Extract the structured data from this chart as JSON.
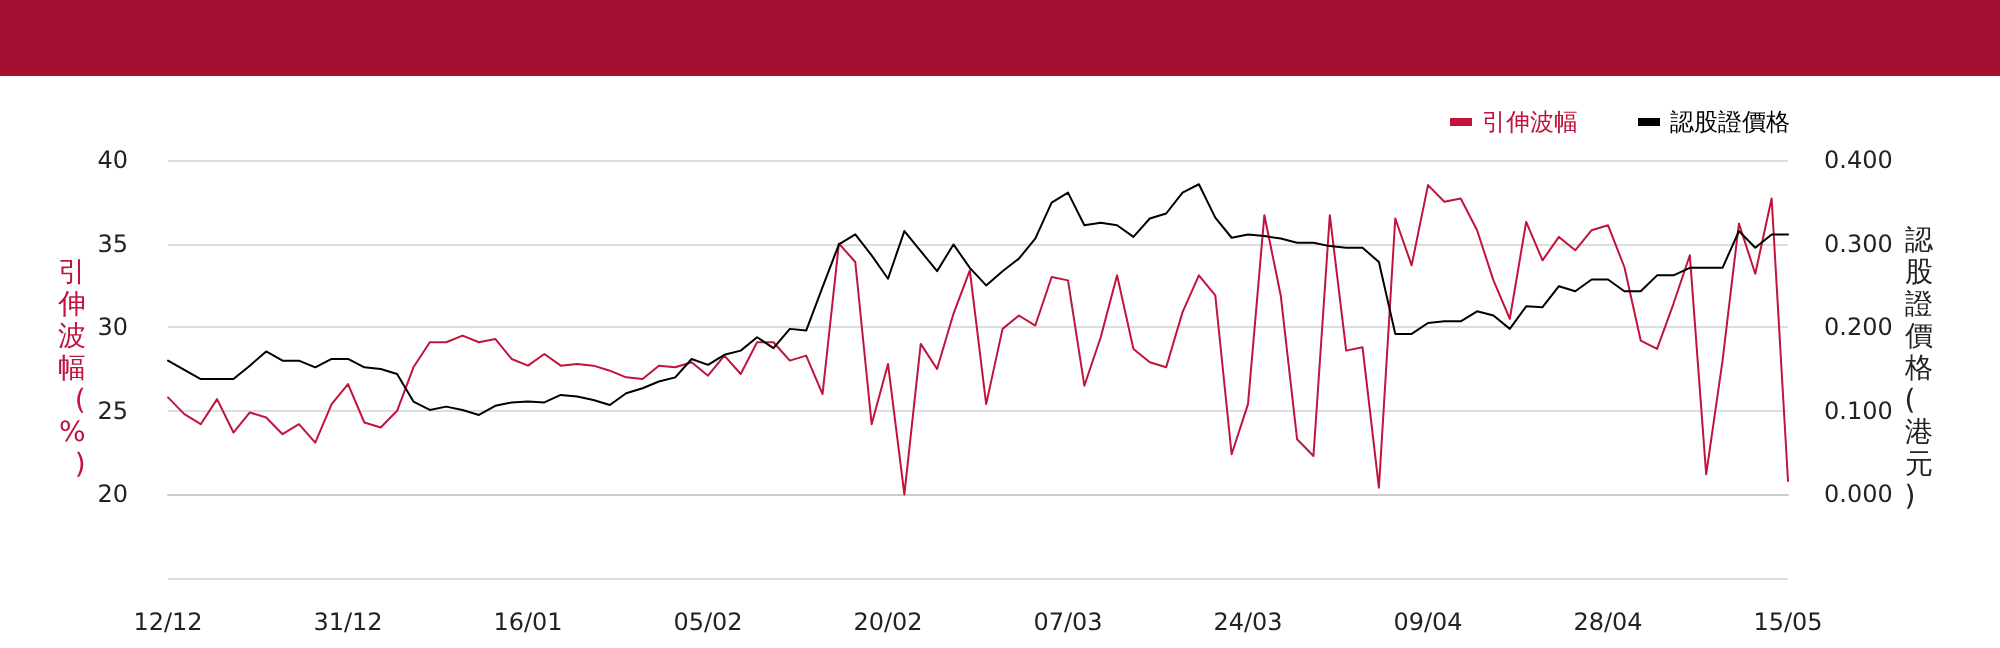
{
  "chart_data": {
    "type": "line",
    "categories": [
      "12/12",
      null,
      null,
      null,
      null,
      null,
      null,
      null,
      null,
      null,
      null,
      "31/12",
      null,
      null,
      null,
      null,
      null,
      null,
      null,
      null,
      null,
      null,
      "16/01",
      null,
      null,
      null,
      null,
      null,
      null,
      null,
      null,
      null,
      null,
      "05/02",
      null,
      null,
      null,
      null,
      null,
      null,
      null,
      null,
      null,
      null,
      "20/02",
      null,
      null,
      null,
      null,
      null,
      null,
      null,
      null,
      null,
      null,
      "07/03",
      null,
      null,
      null,
      null,
      null,
      null,
      null,
      null,
      null,
      null,
      "24/03",
      null,
      null,
      null,
      null,
      null,
      null,
      null,
      null,
      null,
      null,
      "09/04",
      null,
      null,
      null,
      null,
      null,
      null,
      null,
      null,
      null,
      null,
      "28/04",
      null,
      null,
      null,
      null,
      null,
      null,
      null,
      null,
      null,
      null,
      "15/05"
    ],
    "series": [
      {
        "name": "引伸波幅",
        "color": "#c0143c",
        "values": [
          25.8,
          24.8,
          24.2,
          25.7,
          23.7,
          24.9,
          24.6,
          23.6,
          24.2,
          23.1,
          25.4,
          26.6,
          24.3,
          24.0,
          25.0,
          27.6,
          29.1,
          29.1,
          29.5,
          29.1,
          29.3,
          28.1,
          27.7,
          28.4,
          27.7,
          27.8,
          27.7,
          27.4,
          27.0,
          26.9,
          27.7,
          27.6,
          27.9,
          27.1,
          28.3,
          27.2,
          29.1,
          29.1,
          28.0,
          28.3,
          26.0,
          35.0,
          33.9,
          24.2,
          27.8,
          20.0,
          29.0,
          27.5,
          30.8,
          33.4,
          25.4,
          29.9,
          30.7,
          30.1,
          33.0,
          32.8,
          26.5,
          29.4,
          33.1,
          28.7,
          27.9,
          27.6,
          30.9,
          33.1,
          31.9,
          22.4,
          25.4,
          36.7,
          31.9,
          23.3,
          22.3,
          36.7,
          28.6,
          28.8,
          20.4,
          36.5,
          33.7,
          38.5,
          37.5,
          37.7,
          35.8,
          32.8,
          30.5,
          36.3,
          34.0,
          35.4,
          34.6,
          35.8,
          36.1,
          33.6,
          29.2,
          28.7,
          31.4,
          34.3,
          21.2,
          28.0,
          36.2,
          33.2,
          37.7,
          20.8
        ]
      },
      {
        "name": "認股證價格",
        "color": "#000000",
        "axis": "y2",
        "values": [
          0.16,
          0.149,
          0.138,
          0.138,
          0.138,
          0.154,
          0.171,
          0.16,
          0.16,
          0.152,
          0.162,
          0.162,
          0.152,
          0.15,
          0.144,
          0.111,
          0.101,
          0.105,
          0.101,
          0.095,
          0.106,
          0.11,
          0.111,
          0.11,
          0.119,
          0.117,
          0.113,
          0.107,
          0.121,
          0.127,
          0.135,
          0.14,
          0.162,
          0.155,
          0.167,
          0.172,
          0.188,
          0.175,
          0.198,
          0.196,
          0.248,
          0.299,
          0.311,
          0.286,
          0.258,
          0.315,
          0.291,
          0.267,
          0.299,
          0.271,
          0.25,
          0.267,
          0.282,
          0.306,
          0.349,
          0.361,
          0.322,
          0.325,
          0.322,
          0.308,
          0.33,
          0.336,
          0.361,
          0.371,
          0.331,
          0.307,
          0.311,
          0.309,
          0.306,
          0.301,
          0.301,
          0.297,
          0.295,
          0.295,
          0.278,
          0.192,
          0.192,
          0.205,
          0.207,
          0.207,
          0.219,
          0.214,
          0.198,
          0.225,
          0.224,
          0.249,
          0.243,
          0.257,
          0.257,
          0.243,
          0.243,
          0.262,
          0.262,
          0.271,
          0.271,
          0.271,
          0.315,
          0.295,
          0.311,
          0.311
        ]
      }
    ],
    "ylabel": "引伸波幅(%)",
    "y2label": "認股證價格(港元)",
    "ylim": [
      15,
      40
    ],
    "yticks": [
      {
        "value": 15,
        "label": null
      },
      20,
      25,
      30,
      35,
      40
    ],
    "y2lim": [
      -0.1,
      0.4
    ],
    "y2ticks": [
      {
        "value": -0.1,
        "label": null
      },
      {
        "value": 0,
        "label": "0.000"
      },
      {
        "value": 0.1,
        "label": "0.100"
      },
      {
        "value": 0.2,
        "label": "0.200"
      },
      {
        "value": 0.3,
        "label": "0.300"
      },
      {
        "value": 0.4,
        "label": "0.400"
      }
    ],
    "grid": "y",
    "legend": "top right",
    "marker": "none",
    "line_style": "solid"
  }
}
